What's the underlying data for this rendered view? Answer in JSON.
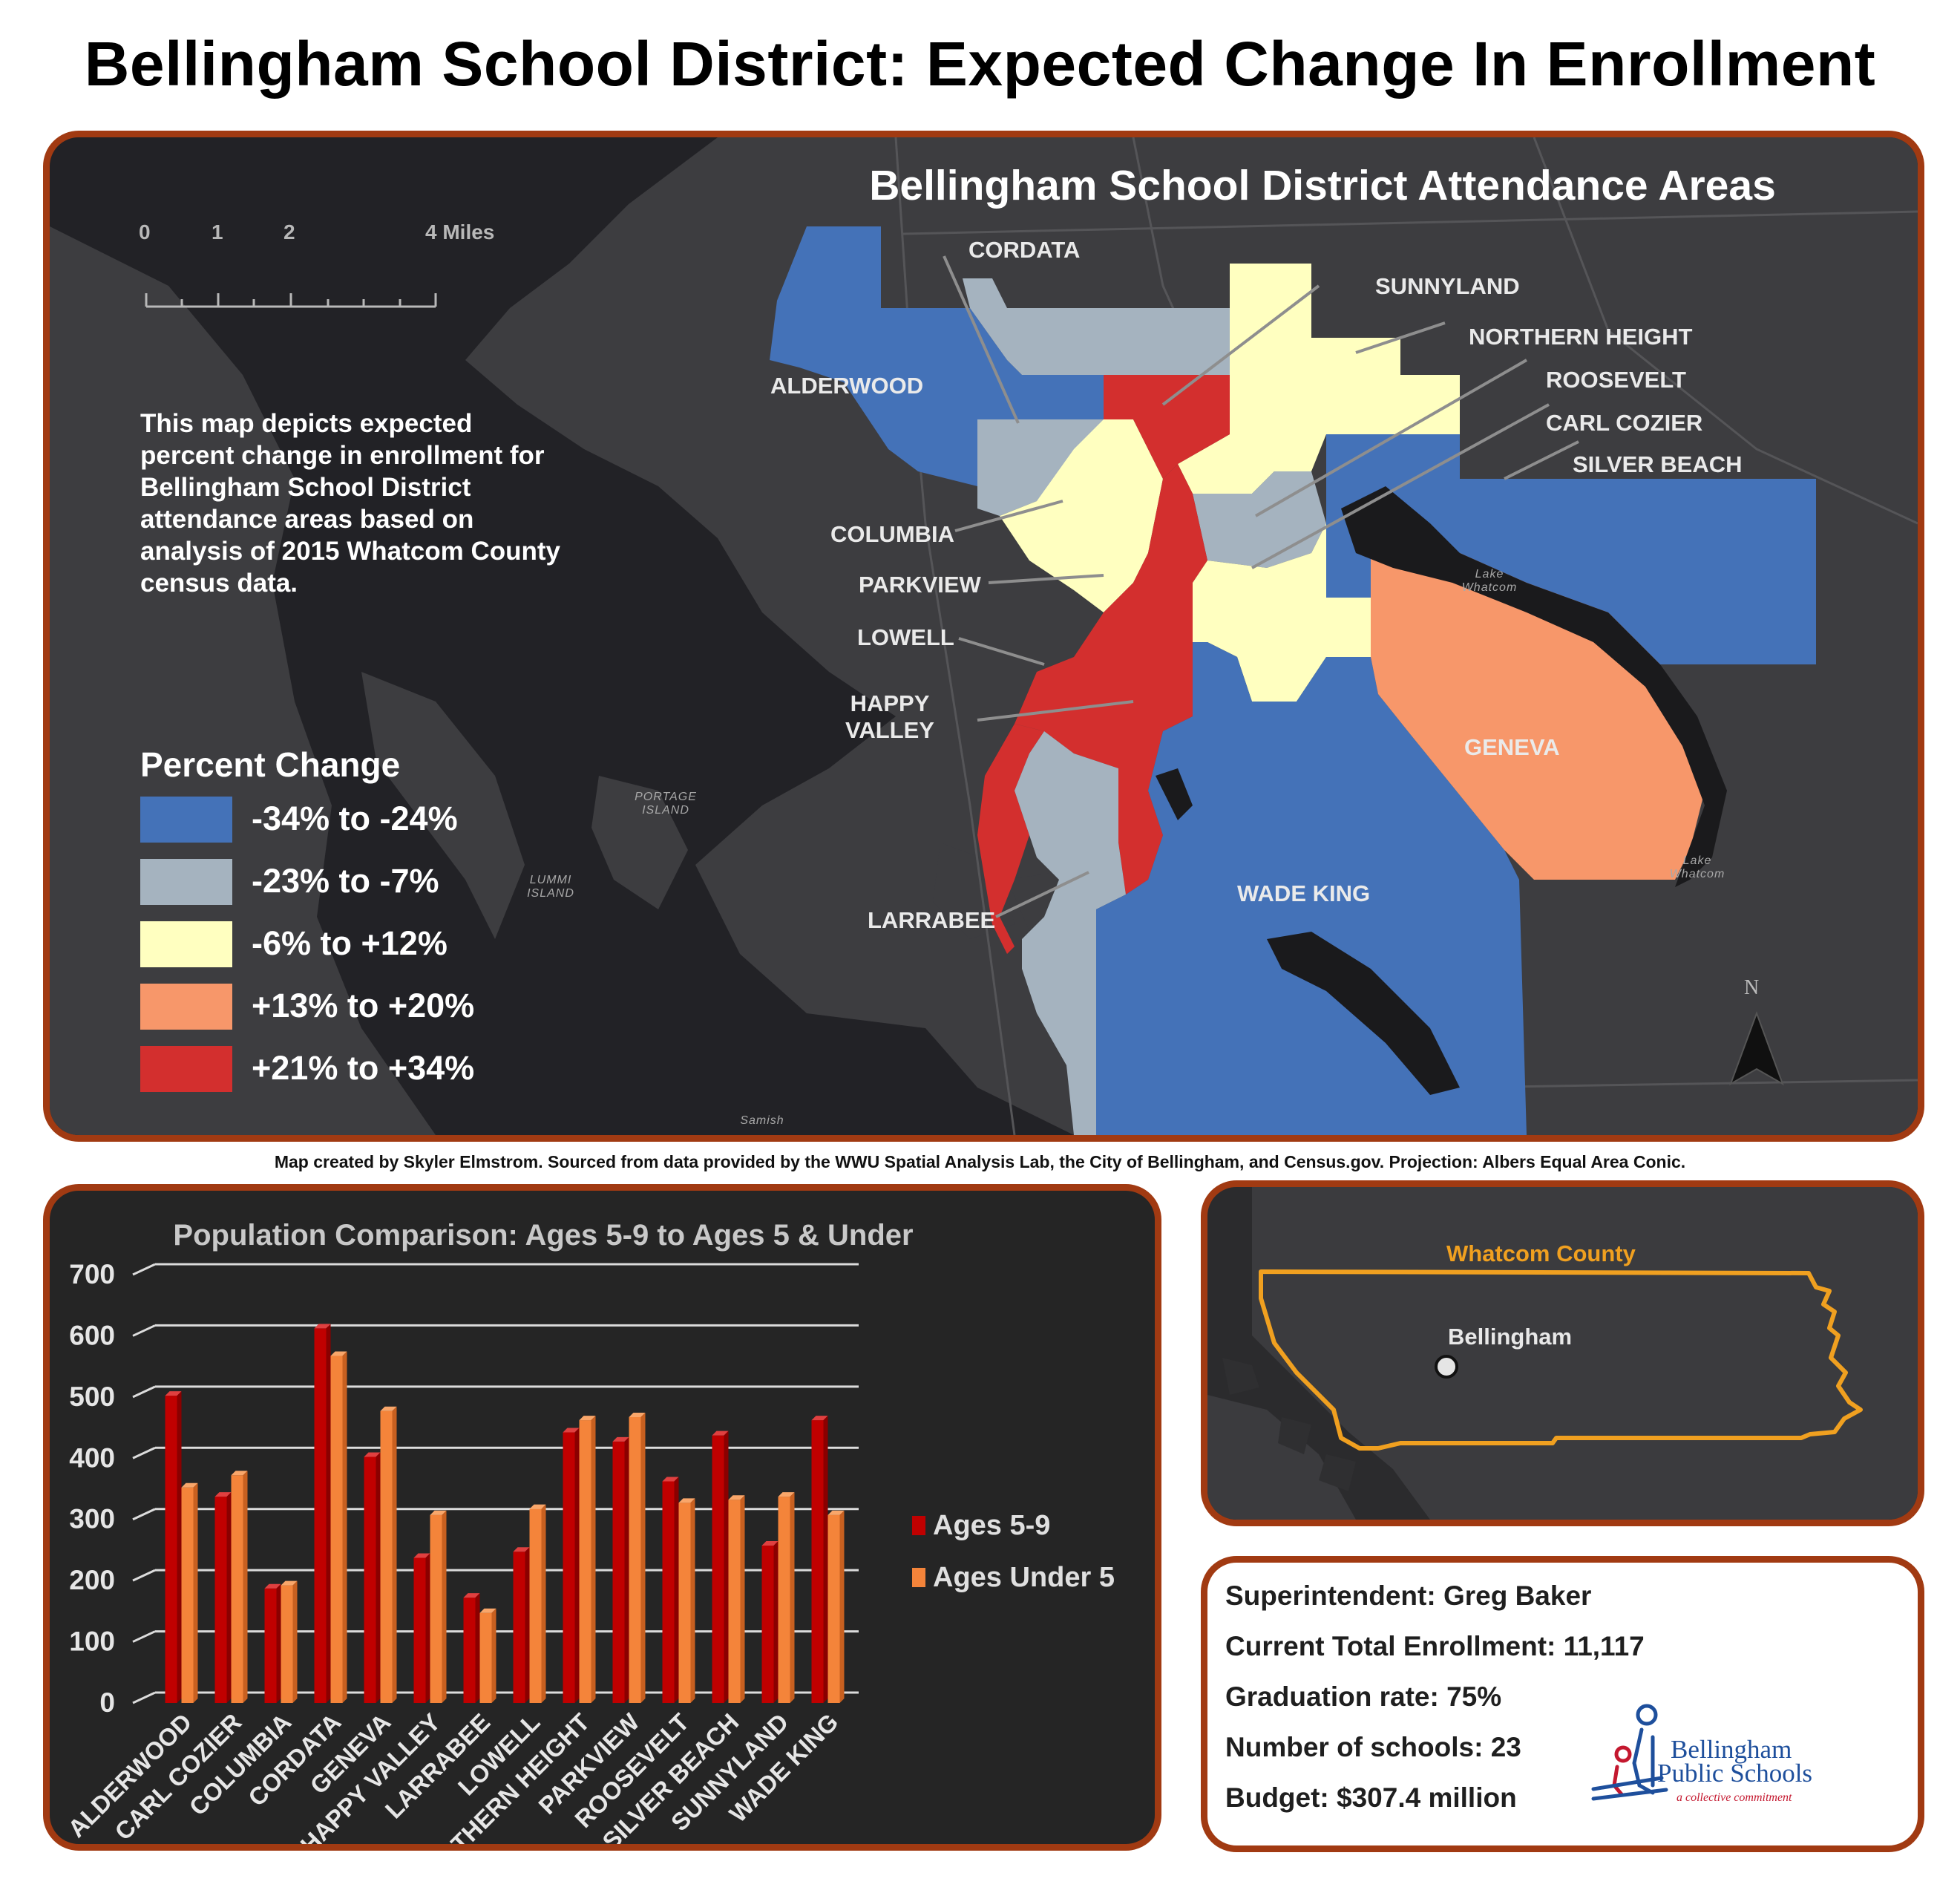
{
  "title": "Bellingham School District: Expected Change In Enrollment",
  "map": {
    "title": "Bellingham School District Attendance Areas",
    "description": "This map depicts expected percent change in enrollment for Bellingham School District attendance areas based on analysis of 2015 Whatcom County census data.",
    "scale_bar": {
      "ticks": [
        "0",
        "1",
        "2",
        "4 Miles"
      ]
    },
    "legend": {
      "title": "Percent Change",
      "items": [
        {
          "label": "-34% to -24%",
          "color": "#4472b8"
        },
        {
          "label": "-23% to -7%",
          "color": "#a5b3bf"
        },
        {
          "label": "-6% to +12%",
          "color": "#ffffc0"
        },
        {
          "label": "+13% to +20%",
          "color": "#f7976a"
        },
        {
          "label": "+21% to +34%",
          "color": "#d32f2e"
        }
      ]
    },
    "area_labels": {
      "cordata": "CORDATA",
      "sunnyland": "SUNNYLAND",
      "northern_height": "NORTHERN HEIGHT",
      "roosevelt": "ROOSEVELT",
      "carl_cozier": "CARL COZIER",
      "silver_beach": "SILVER BEACH",
      "alderwood": "ALDERWOOD",
      "columbia": "COLUMBIA",
      "parkview": "PARKVIEW",
      "lowell": "LOWELL",
      "happy_valley_1": "HAPPY",
      "happy_valley_2": "VALLEY",
      "larrabee": "LARRABEE",
      "geneva": "GENEVA",
      "wade_king": "WADE KING"
    },
    "water_labels": {
      "portage_1": "PORTAGE",
      "portage_2": "ISLAND",
      "lummi_1": "LUMMI",
      "lummi_2": "ISLAND",
      "lake_whatcom_1a": "Lake",
      "lake_whatcom_1b": "Whatcom",
      "lake_whatcom_2a": "Lake",
      "lake_whatcom_2b": "Whatcom",
      "samish": "Samish"
    },
    "north_arrow": "N"
  },
  "credit": "Map created by Skyler Elmstrom. Sourced from data provided by the WWU Spatial Analysis Lab, the City of Bellingham, and Census.gov. Projection: Albers Equal Area Conic.",
  "chart_data": {
    "type": "bar",
    "title": "Population Comparison: Ages 5-9 to Ages 5 & Under",
    "categories": [
      "ALDERWOOD",
      "CARL COZIER",
      "COLUMBIA",
      "CORDATA",
      "GENEVA",
      "HAPPY VALLEY",
      "LARRABEE",
      "LOWELL",
      "NORTHERN HEIGHT",
      "PARKVIEW",
      "ROOSEVELT",
      "SILVER BEACH",
      "SUNNYLAND",
      "WADE KING"
    ],
    "series": [
      {
        "name": "Ages 5-9",
        "values": [
          490,
          325,
          175,
          600,
          390,
          225,
          160,
          235,
          430,
          415,
          350,
          425,
          245,
          450
        ],
        "color": "#c00000"
      },
      {
        "name": "Ages Under 5",
        "values": [
          340,
          360,
          180,
          555,
          465,
          295,
          135,
          305,
          450,
          455,
          315,
          320,
          325,
          295
        ],
        "color": "#f4843a"
      }
    ],
    "ylim": [
      0,
      700
    ],
    "yticks": [
      "0",
      "100",
      "200",
      "300",
      "400",
      "500",
      "600",
      "700"
    ],
    "grid": true,
    "legend_position": "right"
  },
  "locator": {
    "county_label": "Whatcom County",
    "city_label": "Bellingham",
    "outline_color": "#f0a020"
  },
  "info": {
    "superintendent": "Superintendent: Greg Baker",
    "enrollment": "Current Total Enrollment: 11,117",
    "graduation": "Graduation rate: 75%",
    "schools": "Number of schools: 23",
    "budget": "Budget: $307.4 million",
    "logo_line1": "Bellingham",
    "logo_line2": "Public Schools",
    "logo_tagline": "a collective commitment"
  }
}
